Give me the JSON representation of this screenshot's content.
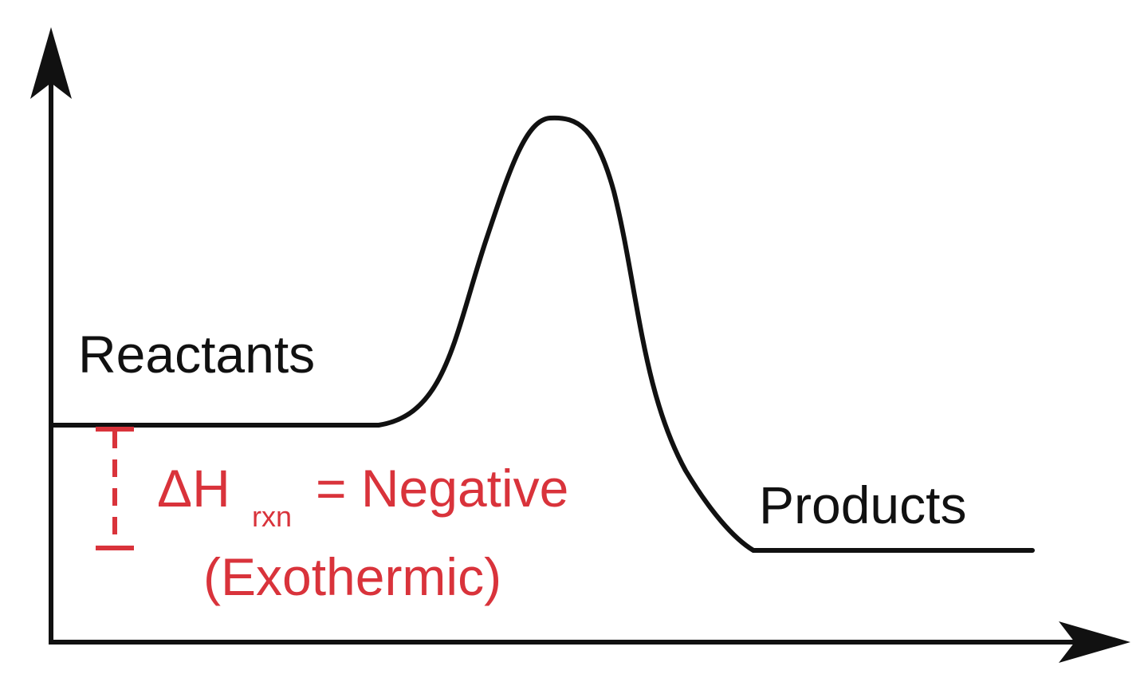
{
  "diagram": {
    "reactants_label": "Reactants",
    "products_label": "Products",
    "delta_h_symbol": "ΔH",
    "delta_h_subscript": "rxn",
    "delta_h_value": "= Negative",
    "reaction_type": "(Exothermic)"
  },
  "colors": {
    "axis": "#111111",
    "curve": "#111111",
    "annotation": "#d9333b"
  }
}
